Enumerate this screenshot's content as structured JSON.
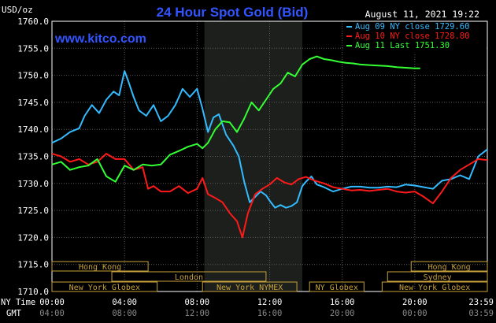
{
  "header": {
    "unit": "USD/oz",
    "title": "24 Hour Spot Gold (Bid)",
    "timestamp": "August 11, 2021 19:22",
    "site": "www.kitco.com"
  },
  "chart_data": {
    "type": "line",
    "title": "24 Hour Spot Gold (Bid)",
    "ylabel": "USD/oz",
    "ylim": [
      1710,
      1760
    ],
    "yticks": [
      "1760.0",
      "1755.0",
      "1750.0",
      "1745.0",
      "1740.0",
      "1735.0",
      "1730.0",
      "1725.0",
      "1720.0",
      "1715.0",
      "1710.0"
    ],
    "xlim": [
      0,
      24
    ],
    "grid": true,
    "legend_position": "top-right",
    "x_axis": {
      "row1_label": "NY Time",
      "row2_label": "GMT",
      "ny_ticks": [
        "00:00",
        "04:00",
        "08:00",
        "12:00",
        "16:00",
        "20:00",
        "23:59"
      ],
      "gmt_ticks": [
        "04:00",
        "08:00",
        "12:00",
        "16:00",
        "20:00",
        "00:00",
        "03:59"
      ],
      "tick_hours": [
        0,
        4,
        8,
        12,
        16,
        20,
        24
      ]
    },
    "shaded_region": [
      8.4,
      13.8
    ],
    "series": [
      {
        "name": "Aug 09 NY close 1729.60",
        "color": "#33bbff",
        "x": [
          0,
          0.5,
          1,
          1.5,
          1.8,
          2.2,
          2.6,
          3,
          3.4,
          3.7,
          4,
          4.2,
          4.5,
          4.8,
          5.2,
          5.6,
          6,
          6.4,
          6.8,
          7.2,
          7.6,
          8,
          8.3,
          8.6,
          8.9,
          9.2,
          9.6,
          10,
          10.3,
          10.6,
          10.9,
          11.2,
          11.5,
          11.8,
          12,
          12.3,
          12.6,
          12.9,
          13.2,
          13.5,
          13.8,
          14,
          14.3,
          14.6,
          15,
          15.5,
          16,
          16.5,
          17,
          17.5,
          18,
          18.5,
          19,
          19.5,
          20,
          20.5,
          21,
          21.5,
          22,
          22.5,
          23,
          23.5,
          24
        ],
        "y": [
          1737.5,
          1738.3,
          1739.5,
          1740.2,
          1742.5,
          1744.5,
          1743,
          1745.5,
          1747,
          1746.3,
          1750.8,
          1749,
          1746,
          1743.5,
          1742.5,
          1744.5,
          1741.5,
          1742.5,
          1744.5,
          1747.5,
          1746,
          1747.5,
          1743.8,
          1739.5,
          1742.2,
          1742.8,
          1739,
          1737,
          1735,
          1730.3,
          1726.5,
          1727.5,
          1728.5,
          1727.8,
          1726.8,
          1725.5,
          1726,
          1725.5,
          1725.8,
          1726.5,
          1729.5,
          1730.3,
          1731.3,
          1729.8,
          1729.3,
          1728.5,
          1729,
          1729.4,
          1729.4,
          1729.2,
          1729.2,
          1729.4,
          1729.3,
          1729.8,
          1729.6,
          1729.3,
          1729,
          1730.5,
          1730.8,
          1731.5,
          1730.8,
          1735,
          1736.3
        ]
      },
      {
        "name": "Aug 10 NY close 1728.80",
        "color": "#ff1a1a",
        "x": [
          0,
          0.5,
          1,
          1.5,
          2,
          2.5,
          3,
          3.5,
          4,
          4.5,
          5,
          5.3,
          5.6,
          6,
          6.5,
          7,
          7.5,
          8,
          8.3,
          8.6,
          9,
          9.4,
          9.8,
          10.2,
          10.5,
          10.8,
          11.2,
          11.6,
          12,
          12.4,
          12.8,
          13.2,
          13.6,
          14,
          14.5,
          15,
          15.5,
          16,
          16.5,
          17,
          17.5,
          18,
          18.5,
          19,
          19.5,
          20,
          20.5,
          21,
          21.5,
          22,
          22.5,
          23,
          23.5,
          24
        ],
        "y": [
          1735.5,
          1735,
          1734,
          1734.5,
          1733.5,
          1734,
          1735.5,
          1734.5,
          1734.5,
          1732.5,
          1733,
          1729,
          1729.5,
          1728.5,
          1728.5,
          1729.5,
          1728.2,
          1729,
          1731,
          1728,
          1727.3,
          1726.5,
          1724.5,
          1723,
          1720,
          1724.5,
          1728,
          1729,
          1729.8,
          1731,
          1730.2,
          1729.8,
          1730.8,
          1731.2,
          1730.5,
          1730,
          1729.3,
          1729,
          1728.7,
          1728.8,
          1728.6,
          1728.8,
          1729,
          1728.5,
          1728.3,
          1728.5,
          1727.5,
          1726.3,
          1728.5,
          1731,
          1732.5,
          1733.5,
          1734.5,
          1734.3
        ]
      },
      {
        "name": "Aug 11 Last 1751.30",
        "color": "#33ff33",
        "x": [
          0,
          0.5,
          1,
          1.5,
          2,
          2.5,
          3,
          3.5,
          4,
          4.5,
          5,
          5.5,
          6,
          6.5,
          7,
          7.5,
          8,
          8.3,
          8.6,
          9,
          9.4,
          9.8,
          10.2,
          10.6,
          11,
          11.4,
          11.8,
          12.2,
          12.6,
          13,
          13.4,
          13.8,
          14.2,
          14.6,
          15,
          15.4,
          15.8,
          16.2,
          16.6,
          17,
          17.5,
          18,
          18.5,
          19,
          19.5,
          20,
          20.3
        ],
        "y": [
          1733.5,
          1734,
          1732.5,
          1733,
          1733.3,
          1734.5,
          1731.3,
          1730.3,
          1733.3,
          1732.5,
          1733.5,
          1733.3,
          1733.5,
          1735.3,
          1736,
          1736.8,
          1737.3,
          1736.5,
          1737.5,
          1740,
          1741.5,
          1741.3,
          1739.5,
          1742,
          1745,
          1743.5,
          1745.5,
          1747.5,
          1748.5,
          1750.5,
          1749.8,
          1752,
          1753,
          1753.5,
          1753,
          1752.8,
          1752.5,
          1752.3,
          1752.2,
          1752,
          1751.9,
          1751.8,
          1751.7,
          1751.5,
          1751.4,
          1751.3,
          1751.3
        ]
      }
    ]
  },
  "sessions": [
    {
      "label": "Hong Kong",
      "start": 0,
      "end": 5.3,
      "row": 0
    },
    {
      "label": "Hong Kong",
      "start": 19.8,
      "end": 24,
      "row": 0
    },
    {
      "label": "London",
      "start": 3.3,
      "end": 11.8,
      "row": 1
    },
    {
      "label": "Sydney",
      "start": 18.5,
      "end": 24,
      "row": 1
    },
    {
      "label": "New York Globex",
      "start": 0,
      "end": 5.8,
      "row": 2
    },
    {
      "label": "New York NYMEX",
      "start": 8.3,
      "end": 13.5,
      "row": 2
    },
    {
      "label": "NY Globex",
      "start": 14.2,
      "end": 17.2,
      "row": 2
    },
    {
      "label": "New York Globex",
      "start": 18.2,
      "end": 24,
      "row": 2
    }
  ],
  "colors": {
    "background": "#000000",
    "plot_background": "#000000",
    "shaded_band": "#1c1f1c",
    "grid": "#5a5a5a",
    "text": "#ffffff",
    "title": "#3355ff",
    "session_box": "#c8a23c"
  }
}
